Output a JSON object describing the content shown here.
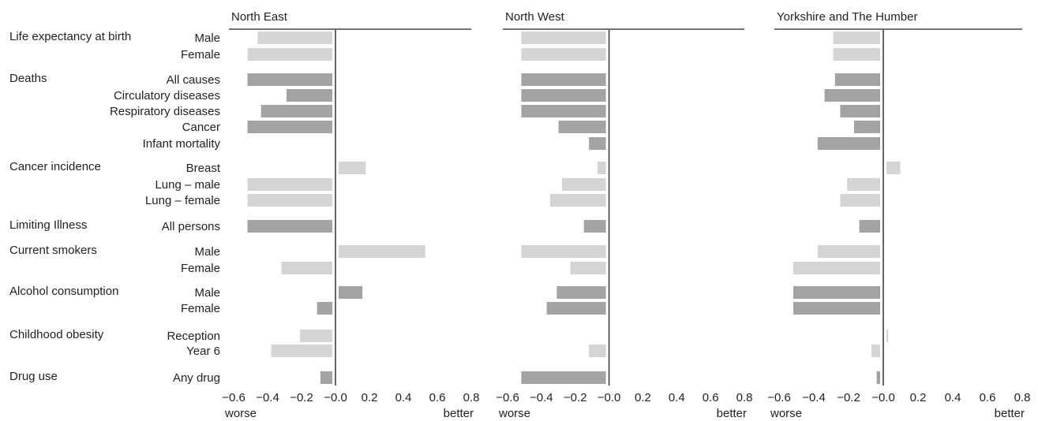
{
  "groups": [
    {
      "name": "Life expectancy at birth",
      "color": "#d4d4d4",
      "items": [
        "Male",
        "Female"
      ]
    },
    {
      "name": "Deaths",
      "color": "#a3a3a3",
      "items": [
        "All causes",
        "Circulatory diseases",
        "Respiratory diseases",
        "Cancer",
        "Infant mortality"
      ]
    },
    {
      "name": "Cancer incidence",
      "color": "#d4d4d4",
      "items": [
        "Breast",
        "Lung – male",
        "Lung – female"
      ]
    },
    {
      "name": "Limiting Illness",
      "color": "#a3a3a3",
      "items": [
        "All persons"
      ]
    },
    {
      "name": "Current smokers",
      "color": "#d4d4d4",
      "items": [
        "Male",
        "Female"
      ]
    },
    {
      "name": "Alcohol consumption",
      "color": "#a3a3a3",
      "items": [
        "Male",
        "Female"
      ]
    },
    {
      "name": "Childhood obesity",
      "color": "#d4d4d4",
      "items": [
        "Reception",
        "Year 6"
      ]
    },
    {
      "name": "Drug use",
      "color": "#a3a3a3",
      "items": [
        "Any drug"
      ]
    }
  ],
  "chart_data": [
    {
      "type": "bar",
      "orientation": "horizontal",
      "title": "North East",
      "values": [
        -0.44,
        -0.5,
        -0.5,
        -0.27,
        -0.42,
        -0.5,
        null,
        0.16,
        -0.5,
        -0.5,
        -0.5,
        0.51,
        -0.3,
        0.14,
        -0.09,
        -0.19,
        -0.36,
        -0.07
      ],
      "xlim": [
        -0.6,
        0.8
      ],
      "xticks": [
        {
          "value": -0.6,
          "label": "−0.6"
        },
        {
          "value": -0.4,
          "label": "−0.4"
        },
        {
          "value": -0.2,
          "label": "−0.2"
        },
        {
          "value": 0,
          "label": "−0.0"
        },
        {
          "value": 0.2,
          "label": "0.2"
        },
        {
          "value": 0.4,
          "label": "0.4"
        },
        {
          "value": 0.6,
          "label": "0.6"
        },
        {
          "value": 0.8,
          "label": "0.8"
        }
      ],
      "xlabel_left": "worse",
      "xlabel_right": "better"
    },
    {
      "type": "bar",
      "orientation": "horizontal",
      "title": "North West",
      "values": [
        -0.5,
        -0.5,
        -0.5,
        -0.5,
        -0.5,
        -0.28,
        -0.1,
        -0.05,
        -0.26,
        -0.33,
        -0.13,
        -0.5,
        -0.21,
        -0.29,
        -0.35,
        null,
        -0.1,
        -0.5
      ],
      "xlim": [
        -0.6,
        0.8
      ],
      "xticks": [
        {
          "value": -0.6,
          "label": "−0.6"
        },
        {
          "value": -0.4,
          "label": "−0.4"
        },
        {
          "value": -0.2,
          "label": "−0.2"
        },
        {
          "value": 0,
          "label": "−0.0"
        },
        {
          "value": 0.2,
          "label": "0.2"
        },
        {
          "value": 0.4,
          "label": "0.4"
        },
        {
          "value": 0.6,
          "label": "0.6"
        },
        {
          "value": 0.8,
          "label": "0.8"
        }
      ],
      "xlabel_left": "worse",
      "xlabel_right": "better"
    },
    {
      "type": "bar",
      "orientation": "horizontal",
      "title": "Yorkshire and The Humber",
      "values": [
        -0.27,
        -0.27,
        -0.26,
        -0.32,
        -0.23,
        -0.15,
        -0.36,
        0.08,
        -0.19,
        -0.23,
        -0.12,
        -0.36,
        -0.5,
        -0.5,
        -0.5,
        0.01,
        -0.05,
        -0.02
      ],
      "xlim": [
        -0.6,
        0.8
      ],
      "xticks": [
        {
          "value": -0.6,
          "label": "−0.6"
        },
        {
          "value": -0.4,
          "label": "−0.4"
        },
        {
          "value": -0.2,
          "label": "−0.2"
        },
        {
          "value": 0,
          "label": "−0.0"
        },
        {
          "value": 0.2,
          "label": "0.2"
        },
        {
          "value": 0.4,
          "label": "0.4"
        },
        {
          "value": 0.6,
          "label": "0.6"
        },
        {
          "value": 0.8,
          "label": "0.8"
        }
      ],
      "xlabel_left": "worse",
      "xlabel_right": "better"
    }
  ]
}
